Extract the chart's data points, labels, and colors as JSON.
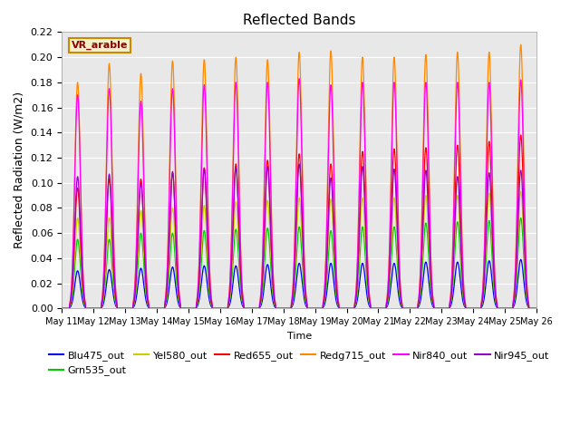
{
  "title": "Reflected Bands",
  "xlabel": "Time",
  "ylabel": "Reflected Radiation (W/m2)",
  "annotation": "VR_arable",
  "ylim": [
    0,
    0.22
  ],
  "num_days": 15,
  "background_color": "#e8e8e8",
  "series": [
    {
      "name": "Blu475_out",
      "color": "#0000ff",
      "peaks": [
        0.03,
        0.031,
        0.032,
        0.033,
        0.034,
        0.034,
        0.035,
        0.036,
        0.036,
        0.036,
        0.036,
        0.037,
        0.037,
        0.038,
        0.039
      ]
    },
    {
      "name": "Grn535_out",
      "color": "#00cc00",
      "peaks": [
        0.055,
        0.055,
        0.06,
        0.06,
        0.062,
        0.063,
        0.064,
        0.065,
        0.062,
        0.065,
        0.065,
        0.068,
        0.069,
        0.07,
        0.072
      ]
    },
    {
      "name": "Yel580_out",
      "color": "#cccc00",
      "peaks": [
        0.072,
        0.072,
        0.078,
        0.08,
        0.082,
        0.085,
        0.086,
        0.088,
        0.087,
        0.088,
        0.088,
        0.09,
        0.09,
        0.092,
        0.093
      ]
    },
    {
      "name": "Red655_out",
      "color": "#ff0000",
      "peaks": [
        0.096,
        0.103,
        0.103,
        0.109,
        0.112,
        0.115,
        0.118,
        0.123,
        0.115,
        0.125,
        0.127,
        0.128,
        0.13,
        0.133,
        0.138
      ]
    },
    {
      "name": "Redg715_out",
      "color": "#ff8800",
      "peaks": [
        0.18,
        0.195,
        0.187,
        0.197,
        0.198,
        0.2,
        0.198,
        0.204,
        0.205,
        0.2,
        0.2,
        0.202,
        0.204,
        0.204,
        0.21
      ]
    },
    {
      "name": "Nir840_out",
      "color": "#ff00ff",
      "peaks": [
        0.17,
        0.175,
        0.165,
        0.175,
        0.178,
        0.18,
        0.18,
        0.183,
        0.178,
        0.18,
        0.18,
        0.18,
        0.18,
        0.18,
        0.182
      ]
    },
    {
      "name": "Nir945_out",
      "color": "#9900cc",
      "peaks": [
        0.105,
        0.107,
        0.1,
        0.108,
        0.111,
        0.112,
        0.113,
        0.115,
        0.104,
        0.113,
        0.111,
        0.11,
        0.105,
        0.108,
        0.11
      ]
    }
  ],
  "tick_labels": [
    "May 11",
    "May 12",
    "May 13",
    "May 14",
    "May 15",
    "May 16",
    "May 17",
    "May 18",
    "May 19",
    "May 20",
    "May 21",
    "May 22",
    "May 23",
    "May 24",
    "May 25",
    "May 26"
  ]
}
